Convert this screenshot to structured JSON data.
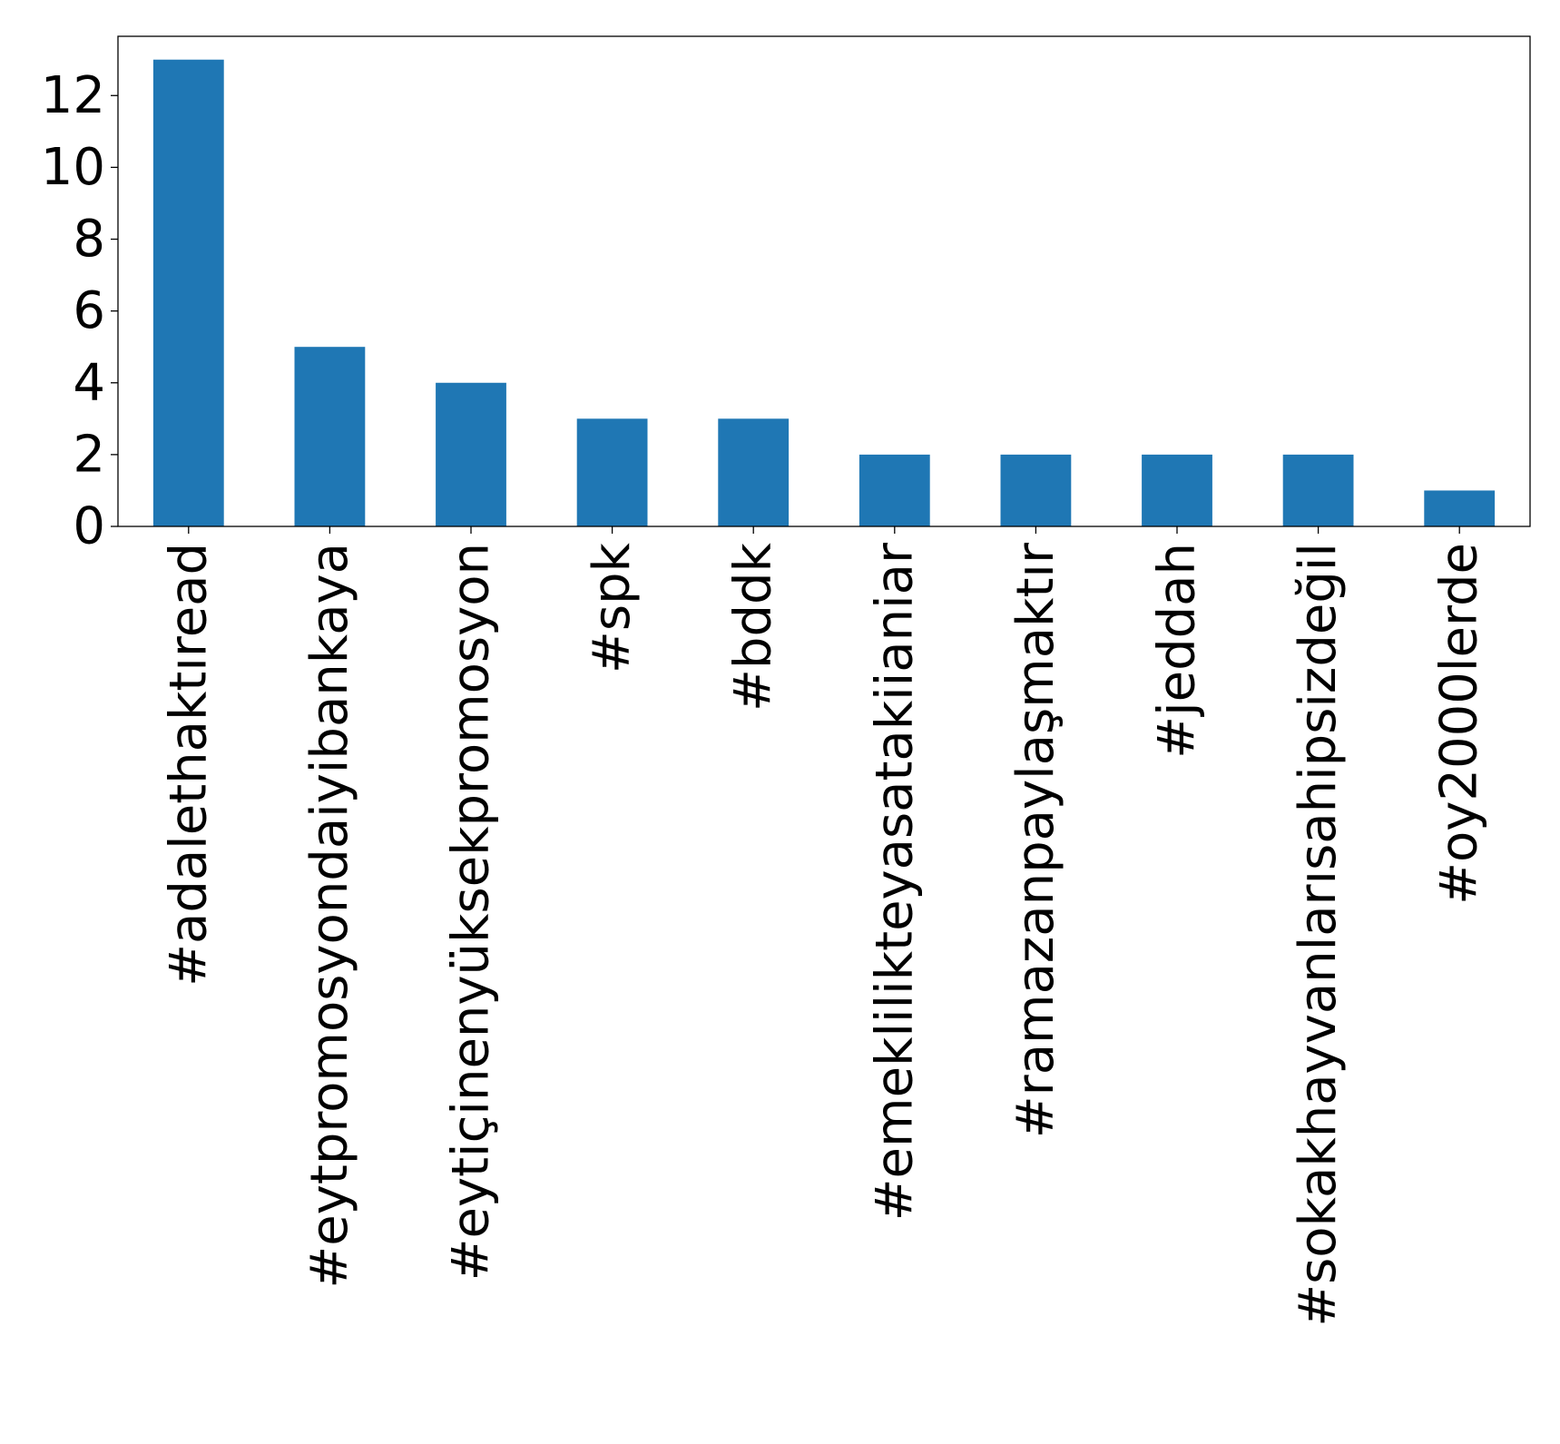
{
  "chart_data": {
    "type": "bar",
    "title": "",
    "xlabel": "",
    "ylabel": "",
    "categories": [
      "#adalethaktıread",
      "#eytpromosyondaiyibankaya",
      "#eytiçinenyüksekpromosyon",
      "#spk",
      "#bddk",
      "#emeklilikteyasatakiianiar",
      "#ramazanpaylaşmaktır",
      "#jeddah",
      "#sokakhayvanlarısahipsizdeğil",
      "#oy2000lerde"
    ],
    "values": [
      13,
      5,
      4,
      3,
      3,
      2,
      2,
      2,
      2,
      1
    ],
    "ylim": [
      0,
      13.65
    ],
    "yticks": [
      0,
      2,
      4,
      6,
      8,
      10,
      12
    ],
    "grid": false,
    "legend": "none",
    "colors": {
      "bar": "#1f77b4",
      "axis": "#000000",
      "background": "#ffffff"
    }
  }
}
